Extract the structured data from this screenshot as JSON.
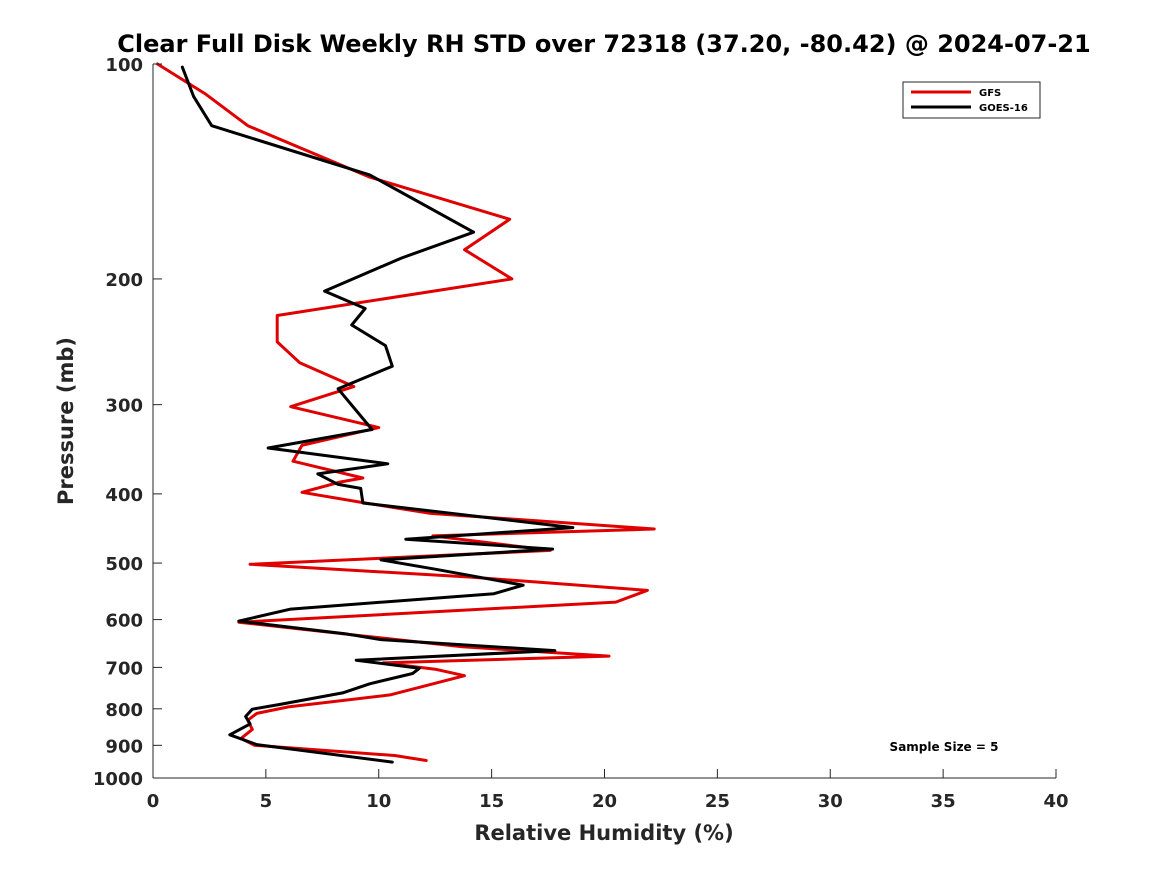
{
  "chart_data": {
    "type": "line",
    "title": "Clear Full Disk Weekly RH STD over 72318 (37.20, -80.42) @ 2024-07-21",
    "xlabel": "Relative Humidity (%)",
    "ylabel": "Pressure (mb)",
    "xlim": [
      0,
      40
    ],
    "ylim": [
      1000,
      100
    ],
    "yscale": "log",
    "xticks": [
      0,
      5,
      10,
      15,
      20,
      25,
      30,
      35,
      40
    ],
    "yticks": [
      100,
      200,
      300,
      400,
      500,
      600,
      700,
      800,
      900,
      1000
    ],
    "grid": false,
    "legend_position": "top-right",
    "annotation": "Sample Size = 5",
    "series": [
      {
        "name": "GFS",
        "color": "#e00000",
        "x": [
          0.2,
          2.3,
          4.2,
          9.6,
          15.8,
          13.8,
          15.9,
          5.5,
          5.5,
          6.5,
          8.9,
          6.1,
          10.0,
          6.6,
          6.2,
          9.3,
          8.3,
          6.6,
          9.4,
          12.3,
          22.2,
          12.4,
          17.6,
          4.3,
          14.0,
          21.9,
          20.5,
          3.8,
          8.8,
          13.7,
          20.2,
          10.2,
          12.5,
          13.8,
          10.5,
          6.0,
          4.6,
          4.2,
          4.4,
          3.9,
          4.5,
          10.7,
          12.1
        ],
        "y": [
          100,
          110,
          122,
          144,
          165,
          182,
          200,
          225,
          245,
          262,
          283,
          302,
          323,
          342,
          360,
          380,
          385,
          398,
          412,
          426,
          448,
          458,
          480,
          502,
          523,
          546,
          567,
          605,
          630,
          655,
          675,
          690,
          704,
          719,
          765,
          795,
          812,
          830,
          855,
          880,
          900,
          930,
          945
        ]
      },
      {
        "name": "GOES-16",
        "color": "#000000",
        "x": [
          1.3,
          1.8,
          2.6,
          9.6,
          14.2,
          11.0,
          7.6,
          9.4,
          8.8,
          10.3,
          10.6,
          8.2,
          9.7,
          5.1,
          10.4,
          7.3,
          8.2,
          9.2,
          9.3,
          18.6,
          11.2,
          17.7,
          10.1,
          12.5,
          16.4,
          15.1,
          6.1,
          3.8,
          8.5,
          10.1,
          17.8,
          9.0,
          11.8,
          11.5,
          9.6,
          8.4,
          5.6,
          4.4,
          4.1,
          4.3,
          3.4,
          4.6,
          10.6
        ],
        "y": [
          101,
          111,
          122,
          143,
          172,
          187,
          208,
          220,
          232,
          248,
          265,
          285,
          325,
          345,
          363,
          375,
          388,
          393,
          412,
          446,
          463,
          478,
          495,
          510,
          537,
          552,
          580,
          603,
          628,
          640,
          663,
          684,
          702,
          714,
          738,
          760,
          789,
          801,
          820,
          840,
          870,
          898,
          950
        ]
      }
    ]
  }
}
